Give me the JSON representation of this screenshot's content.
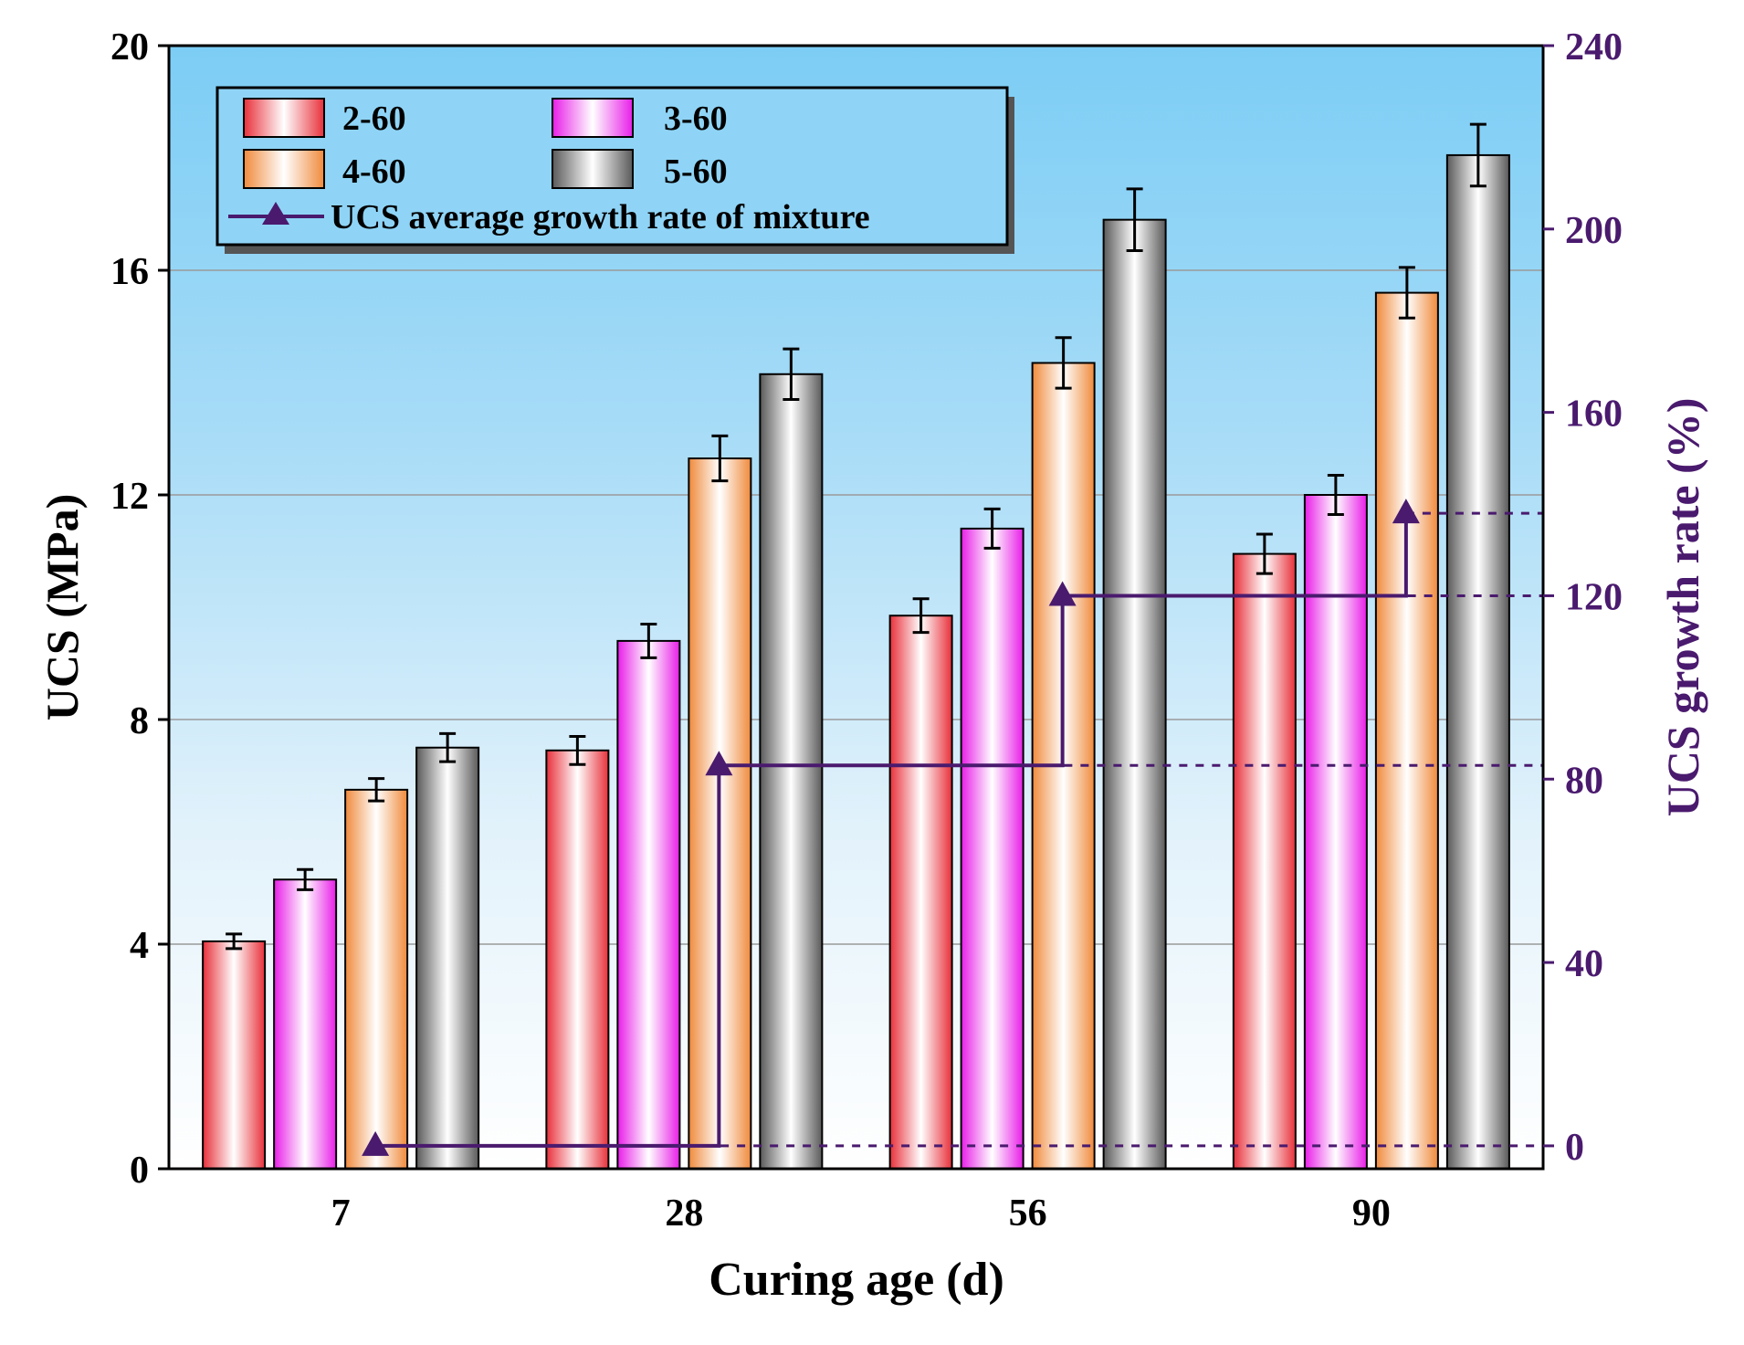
{
  "chart_data": {
    "type": "bar",
    "title": "",
    "xlabel": "Curing age (d)",
    "ylabel": "UCS (MPa)",
    "y2label": "UCS growth rate (%)",
    "categories": [
      "7",
      "28",
      "56",
      "90"
    ],
    "ylim": [
      0,
      20
    ],
    "yticks": [
      0,
      4,
      8,
      12,
      16,
      20
    ],
    "y2lim": [
      -5,
      240
    ],
    "y2ticks": [
      0,
      40,
      80,
      120,
      160,
      200,
      240
    ],
    "series": [
      {
        "name": "2-60",
        "values": [
          4.05,
          7.45,
          9.85,
          10.95
        ],
        "errors": [
          0.13,
          0.25,
          0.3,
          0.35
        ],
        "color": "#e8303a"
      },
      {
        "name": "3-60",
        "values": [
          5.15,
          9.4,
          11.4,
          12.0
        ],
        "errors": [
          0.18,
          0.3,
          0.35,
          0.35
        ],
        "color": "#e81ee8"
      },
      {
        "name": "4-60",
        "values": [
          6.75,
          12.65,
          14.35,
          15.6
        ],
        "errors": [
          0.2,
          0.4,
          0.45,
          0.45
        ],
        "color": "#f08a3c"
      },
      {
        "name": "5-60",
        "values": [
          7.5,
          14.15,
          16.9,
          18.05
        ],
        "errors": [
          0.25,
          0.45,
          0.55,
          0.55
        ],
        "color": "#606060"
      }
    ],
    "growth_rate": {
      "name": "UCS average growth rate of mixture",
      "values": [
        0,
        83,
        120,
        138
      ],
      "color": "#4a1a6e"
    },
    "legend_position": "top-left"
  }
}
